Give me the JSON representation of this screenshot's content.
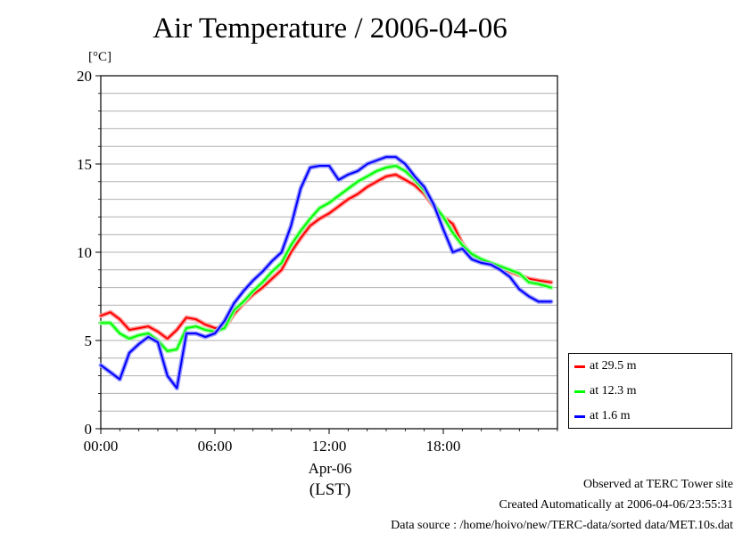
{
  "chart_data": {
    "type": "line",
    "title": "Air Temperature / 2006-04-06",
    "yunit": "[°C]",
    "ylim": [
      0,
      20
    ],
    "yticks": [
      0,
      5,
      10,
      15,
      20
    ],
    "xlim": [
      "2006-04-06 00:00",
      "2006-04-07 00:00"
    ],
    "xticks": [
      "00:00",
      "06:00",
      "12:00",
      "18:00"
    ],
    "xdate_label": "Apr-06",
    "xtz_label": "(LST)",
    "grid": true,
    "legend_position": "right-bottom",
    "x": [
      "00:00",
      "00:30",
      "01:00",
      "01:30",
      "02:00",
      "02:30",
      "03:00",
      "03:30",
      "04:00",
      "04:30",
      "05:00",
      "05:30",
      "06:00",
      "06:30",
      "07:00",
      "07:30",
      "08:00",
      "08:30",
      "09:00",
      "09:30",
      "10:00",
      "10:30",
      "11:00",
      "11:30",
      "12:00",
      "12:30",
      "13:00",
      "13:30",
      "14:00",
      "14:30",
      "15:00",
      "15:30",
      "16:00",
      "16:30",
      "17:00",
      "17:30",
      "18:00",
      "18:30",
      "19:00",
      "19:30",
      "20:00",
      "20:30",
      "21:00",
      "21:30",
      "22:00",
      "22:30",
      "23:00",
      "23:40"
    ],
    "series": [
      {
        "name": "at 29.5 m",
        "color": "#ff0000",
        "values": [
          6.4,
          6.6,
          6.2,
          5.6,
          5.7,
          5.8,
          5.5,
          5.1,
          5.6,
          6.3,
          6.2,
          5.9,
          5.7,
          5.7,
          6.5,
          7.1,
          7.6,
          8.0,
          8.5,
          9.0,
          10.0,
          10.8,
          11.5,
          11.9,
          12.2,
          12.6,
          13.0,
          13.3,
          13.7,
          14.0,
          14.3,
          14.4,
          14.1,
          13.8,
          13.3,
          12.6,
          12.0,
          11.6,
          10.5,
          9.8,
          9.5,
          9.3,
          9.1,
          8.9,
          8.7,
          8.5,
          8.4,
          8.3
        ]
      },
      {
        "name": "at 12.3 m",
        "color": "#00ff00",
        "values": [
          6.0,
          6.0,
          5.4,
          5.1,
          5.3,
          5.4,
          5.0,
          4.4,
          4.5,
          5.7,
          5.8,
          5.6,
          5.5,
          5.7,
          6.7,
          7.2,
          7.8,
          8.3,
          8.9,
          9.4,
          10.4,
          11.2,
          11.9,
          12.5,
          12.8,
          13.2,
          13.6,
          14.0,
          14.3,
          14.6,
          14.8,
          14.9,
          14.6,
          14.1,
          13.5,
          12.7,
          12.0,
          11.1,
          10.4,
          9.9,
          9.6,
          9.4,
          9.2,
          9.0,
          8.8,
          8.3,
          8.2,
          8.0
        ]
      },
      {
        "name": "at 1.6 m",
        "color": "#0000ff",
        "values": [
          3.6,
          3.2,
          2.8,
          4.3,
          4.8,
          5.2,
          4.9,
          3.0,
          2.3,
          5.4,
          5.4,
          5.2,
          5.4,
          6.1,
          7.1,
          7.8,
          8.4,
          8.9,
          9.5,
          10.0,
          11.5,
          13.6,
          14.8,
          14.9,
          14.9,
          14.1,
          14.4,
          14.6,
          15.0,
          15.2,
          15.4,
          15.4,
          15.0,
          14.3,
          13.7,
          12.7,
          11.3,
          10.0,
          10.2,
          9.6,
          9.4,
          9.3,
          9.0,
          8.6,
          7.9,
          7.5,
          7.2,
          7.2
        ]
      }
    ]
  },
  "footer": {
    "line1": "Observed at TERC Tower site",
    "line2": "Created Automatically at 2006-04-06/23:55:31",
    "line3": "Data source : /home/hoivo/new/TERC-data/sorted  data/MET.10s.dat"
  }
}
